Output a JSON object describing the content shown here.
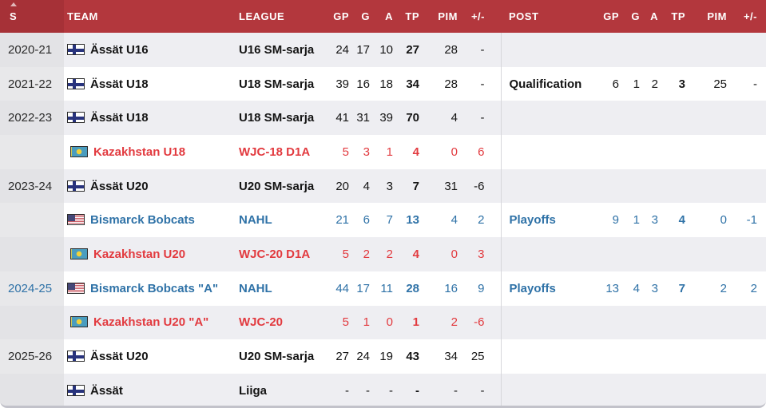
{
  "colors": {
    "header_red": "#b3373d",
    "header_red_sorted": "#a63137",
    "row_alt": "#eeeef2",
    "season_alt": "#e3e3e6",
    "season_plain": "#e8e8ea",
    "divider": "#d6d6db",
    "border_bottom": "#c2c2ca",
    "accent_blue": "#2f72a7",
    "accent_red": "#e23a3f"
  },
  "icons": {
    "sort": "sort-ascending-icon",
    "fi": "finland-flag-icon",
    "us": "usa-flag-icon",
    "kz": "kazakhstan-flag-icon"
  },
  "table": {
    "columns": [
      {
        "key": "season",
        "label": "S",
        "sorted": true
      },
      {
        "key": "team",
        "label": "TEAM"
      },
      {
        "key": "league",
        "label": "LEAGUE"
      },
      {
        "key": "gp",
        "label": "GP"
      },
      {
        "key": "g",
        "label": "G"
      },
      {
        "key": "a",
        "label": "A"
      },
      {
        "key": "tp",
        "label": "TP"
      },
      {
        "key": "pim",
        "label": "PIM"
      },
      {
        "key": "pm",
        "label": "+/-"
      },
      {
        "key": "post",
        "label": "POST"
      },
      {
        "key": "gp2",
        "label": "GP"
      },
      {
        "key": "g2",
        "label": "G"
      },
      {
        "key": "a2",
        "label": "A"
      },
      {
        "key": "tp2",
        "label": "TP"
      },
      {
        "key": "pim2",
        "label": "PIM"
      },
      {
        "key": "pm2",
        "label": "+/-"
      }
    ],
    "rows": [
      {
        "season": "2020-21",
        "season_accent": false,
        "flag": "fi",
        "team": "Ässät U16",
        "league": "U16 SM-sarja",
        "color": "black",
        "stats": [
          "24",
          "17",
          "10",
          "27",
          "28",
          "-"
        ],
        "post": null
      },
      {
        "season": "2021-22",
        "season_accent": false,
        "flag": "fi",
        "team": "Ässät U18",
        "league": "U18 SM-sarja",
        "color": "black",
        "stats": [
          "39",
          "16",
          "18",
          "34",
          "28",
          "-"
        ],
        "post": {
          "label": "Qualification",
          "stats": [
            "6",
            "1",
            "2",
            "3",
            "25",
            "-"
          ]
        }
      },
      {
        "season": "2022-23",
        "season_accent": false,
        "flag": "fi",
        "team": "Ässät U18",
        "league": "U18 SM-sarja",
        "color": "black",
        "stats": [
          "41",
          "31",
          "39",
          "70",
          "4",
          "-"
        ],
        "post": null
      },
      {
        "season": "",
        "season_accent": false,
        "flag": "kz",
        "team": "Kazakhstan U18",
        "league": "WJC-18 D1A",
        "color": "red",
        "stats": [
          "5",
          "3",
          "1",
          "4",
          "0",
          "6"
        ],
        "post": null
      },
      {
        "season": "2023-24",
        "season_accent": false,
        "flag": "fi",
        "team": "Ässät U20",
        "league": "U20 SM-sarja",
        "color": "black",
        "stats": [
          "20",
          "4",
          "3",
          "7",
          "31",
          "-6"
        ],
        "post": null
      },
      {
        "season": "",
        "season_accent": false,
        "flag": "us",
        "team": "Bismarck Bobcats",
        "league": "NAHL",
        "color": "blue",
        "stats": [
          "21",
          "6",
          "7",
          "13",
          "4",
          "2"
        ],
        "post": {
          "label": "Playoffs",
          "stats": [
            "9",
            "1",
            "3",
            "4",
            "0",
            "-1"
          ]
        }
      },
      {
        "season": "",
        "season_accent": false,
        "flag": "kz",
        "team": "Kazakhstan U20",
        "league": "WJC-20 D1A",
        "color": "red",
        "stats": [
          "5",
          "2",
          "2",
          "4",
          "0",
          "3"
        ],
        "post": null
      },
      {
        "season": "2024-25",
        "season_accent": true,
        "flag": "us",
        "team": "Bismarck Bobcats \"A\"",
        "league": "NAHL",
        "color": "blue",
        "stats": [
          "44",
          "17",
          "11",
          "28",
          "16",
          "9"
        ],
        "post": {
          "label": "Playoffs",
          "stats": [
            "13",
            "4",
            "3",
            "7",
            "2",
            "2"
          ]
        }
      },
      {
        "season": "",
        "season_accent": false,
        "flag": "kz",
        "team": "Kazakhstan U20 \"A\"",
        "league": "WJC-20",
        "color": "red",
        "stats": [
          "5",
          "1",
          "0",
          "1",
          "2",
          "-6"
        ],
        "post": null
      },
      {
        "season": "2025-26",
        "season_accent": false,
        "flag": "fi",
        "team": "Ässät U20",
        "league": "U20 SM-sarja",
        "color": "black",
        "stats": [
          "27",
          "24",
          "19",
          "43",
          "34",
          "25"
        ],
        "post": null
      },
      {
        "season": "",
        "season_accent": false,
        "flag": "fi",
        "team": "Ässät",
        "league": "Liiga",
        "color": "black",
        "stats": [
          "-",
          "-",
          "-",
          "-",
          "-",
          "-"
        ],
        "post": null
      }
    ]
  }
}
